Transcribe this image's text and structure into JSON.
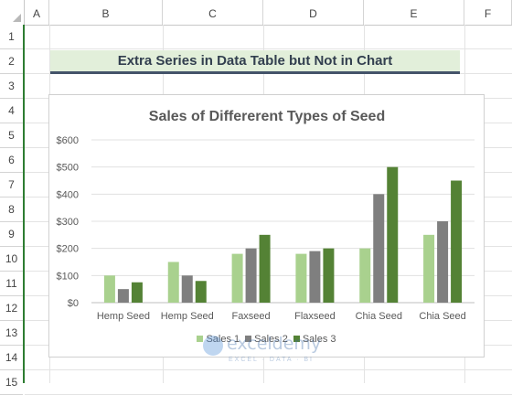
{
  "sheet": {
    "columns": [
      "A",
      "B",
      "C",
      "D",
      "E",
      "F"
    ],
    "rows": [
      "1",
      "2",
      "3",
      "4",
      "5",
      "6",
      "7",
      "8",
      "9",
      "10",
      "11",
      "12",
      "13",
      "14",
      "15"
    ],
    "title_cell": "Extra Series in Data Table but Not in Chart"
  },
  "chart_data": {
    "type": "bar",
    "title": "Sales of Differerent Types of Seed",
    "categories": [
      "Hemp Seed",
      "Hemp Seed",
      "Faxseed",
      "Flaxseed",
      "Chia Seed",
      "Chia Seed"
    ],
    "series": [
      {
        "name": "Sales 1",
        "color": "#a9d18e",
        "values": [
          100,
          150,
          180,
          180,
          200,
          250
        ]
      },
      {
        "name": "Sales 2",
        "color": "#7f7f7f",
        "values": [
          50,
          100,
          200,
          190,
          400,
          300
        ]
      },
      {
        "name": "Sales 3",
        "color": "#548235",
        "values": [
          75,
          80,
          250,
          200,
          500,
          450
        ]
      }
    ],
    "yticks": [
      "$0",
      "$100",
      "$200",
      "$300",
      "$400",
      "$500",
      "$600"
    ],
    "ylim": [
      0,
      600
    ],
    "grid": true,
    "legend": "bottom"
  },
  "watermark": {
    "name": "exceldemy",
    "tagline": "EXCEL · DATA · BI"
  }
}
